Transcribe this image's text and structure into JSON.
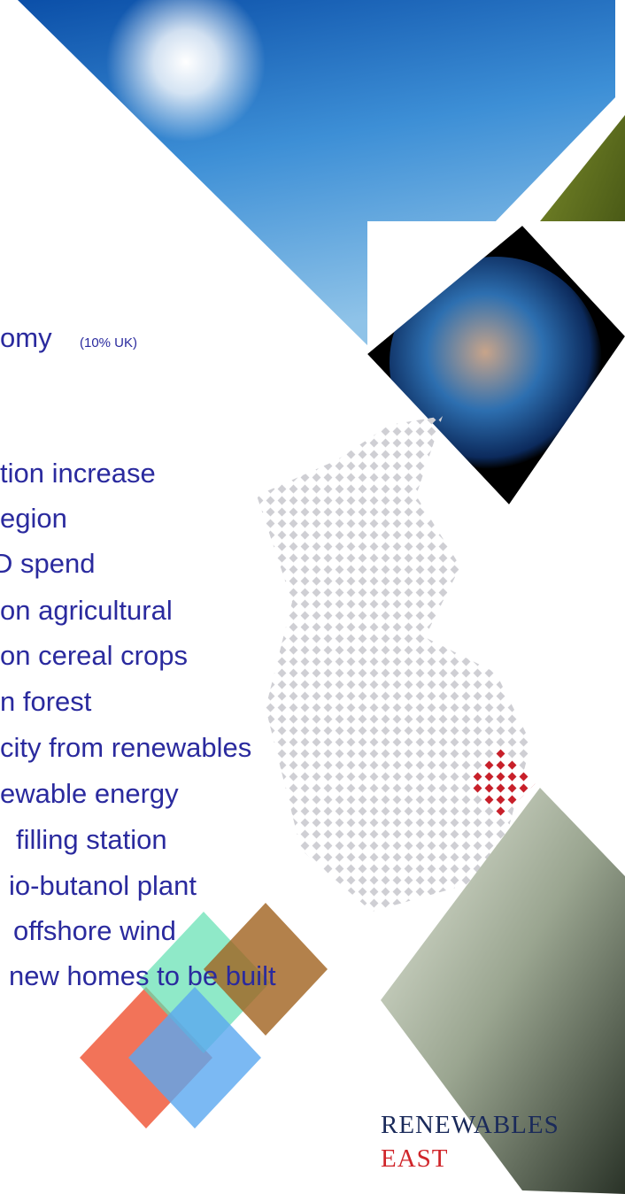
{
  "bullets": [
    "omy",
    "tion increase",
    "egion",
    "D spend",
    "on agricultural",
    "on cereal crops",
    "n forest",
    "city from renewables",
    "ewable energy",
    "filling station",
    "io-butanol plant",
    "offshore wind",
    "new homes to be built"
  ],
  "note": "(10% UK)",
  "logo": {
    "line1": "RENEWABLES",
    "line2": "EAST"
  }
}
